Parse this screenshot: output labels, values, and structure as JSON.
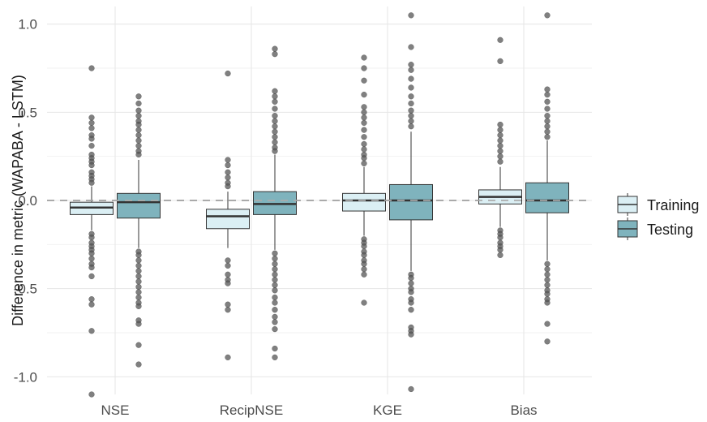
{
  "chart_data": {
    "type": "box",
    "ylabel": "Difference in metric (WAPABA - LSTM)",
    "xlabel": "",
    "ylim": [
      -1.1,
      1.1
    ],
    "yticks": [
      -1.0,
      -0.5,
      0.0,
      0.5,
      1.0
    ],
    "ytick_labels": [
      "-1.0",
      "-0.5",
      "0.0",
      "0.5",
      "1.0"
    ],
    "categories": [
      "NSE",
      "RecipNSE",
      "KGE",
      "Bias"
    ],
    "reference_line": {
      "y": 0.0,
      "style": "dashed",
      "color": "#aaaaaa"
    },
    "grid": true,
    "legend": {
      "position": "right"
    },
    "series": [
      {
        "name": "Training",
        "color": "#dbeff4",
        "boxes": [
          {
            "category": "NSE",
            "q1": -0.08,
            "median": -0.04,
            "q3": -0.01,
            "whisker_low": -0.17,
            "whisker_high": 0.08,
            "outliers": [
              0.75,
              0.47,
              0.44,
              0.41,
              0.37,
              0.35,
              0.31,
              0.26,
              0.24,
              0.22,
              0.2,
              0.16,
              0.14,
              0.12,
              0.1,
              -0.19,
              -0.21,
              -0.24,
              -0.26,
              -0.28,
              -0.3,
              -0.33,
              -0.36,
              -0.38,
              -0.43,
              -0.56,
              -0.59,
              -0.74,
              -1.1
            ]
          },
          {
            "category": "RecipNSE",
            "q1": -0.16,
            "median": -0.09,
            "q3": -0.05,
            "whisker_low": -0.27,
            "whisker_high": 0.05,
            "outliers": [
              0.72,
              0.23,
              0.2,
              0.16,
              0.13,
              0.1,
              0.08,
              -0.34,
              -0.37,
              -0.42,
              -0.45,
              -0.47,
              -0.59,
              -0.62,
              -0.89
            ]
          },
          {
            "category": "KGE",
            "q1": -0.06,
            "median": 0.0,
            "q3": 0.04,
            "whisker_low": -0.2,
            "whisker_high": 0.19,
            "outliers": [
              0.81,
              0.75,
              0.68,
              0.6,
              0.53,
              0.5,
              0.47,
              0.44,
              0.4,
              0.36,
              0.32,
              0.29,
              0.26,
              0.24,
              0.21,
              -0.22,
              -0.24,
              -0.26,
              -0.29,
              -0.31,
              -0.34,
              -0.36,
              -0.39,
              -0.42,
              -0.58
            ]
          },
          {
            "category": "Bias",
            "q1": -0.02,
            "median": 0.02,
            "q3": 0.06,
            "whisker_low": -0.15,
            "whisker_high": 0.19,
            "outliers": [
              0.91,
              0.79,
              0.43,
              0.4,
              0.37,
              0.34,
              0.31,
              0.28,
              0.25,
              0.22,
              -0.17,
              -0.19,
              -0.21,
              -0.24,
              -0.26,
              -0.28,
              -0.31
            ]
          }
        ]
      },
      {
        "name": "Testing",
        "color": "#7fb3bd",
        "boxes": [
          {
            "category": "NSE",
            "q1": -0.1,
            "median": -0.01,
            "q3": 0.04,
            "whisker_low": -0.27,
            "whisker_high": 0.23,
            "outliers": [
              0.59,
              0.55,
              0.51,
              0.48,
              0.45,
              0.43,
              0.4,
              0.37,
              0.34,
              0.31,
              0.28,
              0.26,
              -0.29,
              -0.31,
              -0.34,
              -0.37,
              -0.4,
              -0.43,
              -0.46,
              -0.49,
              -0.52,
              -0.55,
              -0.58,
              -0.6,
              -0.68,
              -0.7,
              -0.82,
              -0.93
            ]
          },
          {
            "category": "RecipNSE",
            "q1": -0.08,
            "median": -0.02,
            "q3": 0.05,
            "whisker_low": -0.28,
            "whisker_high": 0.26,
            "outliers": [
              0.86,
              0.83,
              0.62,
              0.59,
              0.56,
              0.52,
              0.48,
              0.45,
              0.42,
              0.39,
              0.36,
              0.33,
              0.3,
              0.28,
              -0.3,
              -0.33,
              -0.36,
              -0.39,
              -0.42,
              -0.45,
              -0.48,
              -0.51,
              -0.55,
              -0.58,
              -0.62,
              -0.66,
              -0.69,
              -0.73,
              -0.84,
              -0.89
            ]
          },
          {
            "category": "KGE",
            "q1": -0.11,
            "median": 0.0,
            "q3": 0.09,
            "whisker_low": -0.4,
            "whisker_high": 0.39,
            "outliers": [
              1.05,
              0.87,
              0.77,
              0.74,
              0.69,
              0.64,
              0.59,
              0.55,
              0.51,
              0.48,
              0.45,
              0.42,
              -0.42,
              -0.44,
              -0.47,
              -0.5,
              -0.52,
              -0.56,
              -0.58,
              -0.62,
              -0.72,
              -0.74,
              -0.76,
              -1.07
            ]
          },
          {
            "category": "Bias",
            "q1": -0.07,
            "median": 0.0,
            "q3": 0.1,
            "whisker_low": -0.34,
            "whisker_high": 0.34,
            "outliers": [
              1.05,
              0.63,
              0.6,
              0.56,
              0.52,
              0.48,
              0.45,
              0.42,
              0.39,
              0.36,
              -0.36,
              -0.39,
              -0.42,
              -0.45,
              -0.48,
              -0.51,
              -0.53,
              -0.56,
              -0.58,
              -0.7,
              -0.8
            ]
          }
        ]
      }
    ]
  }
}
